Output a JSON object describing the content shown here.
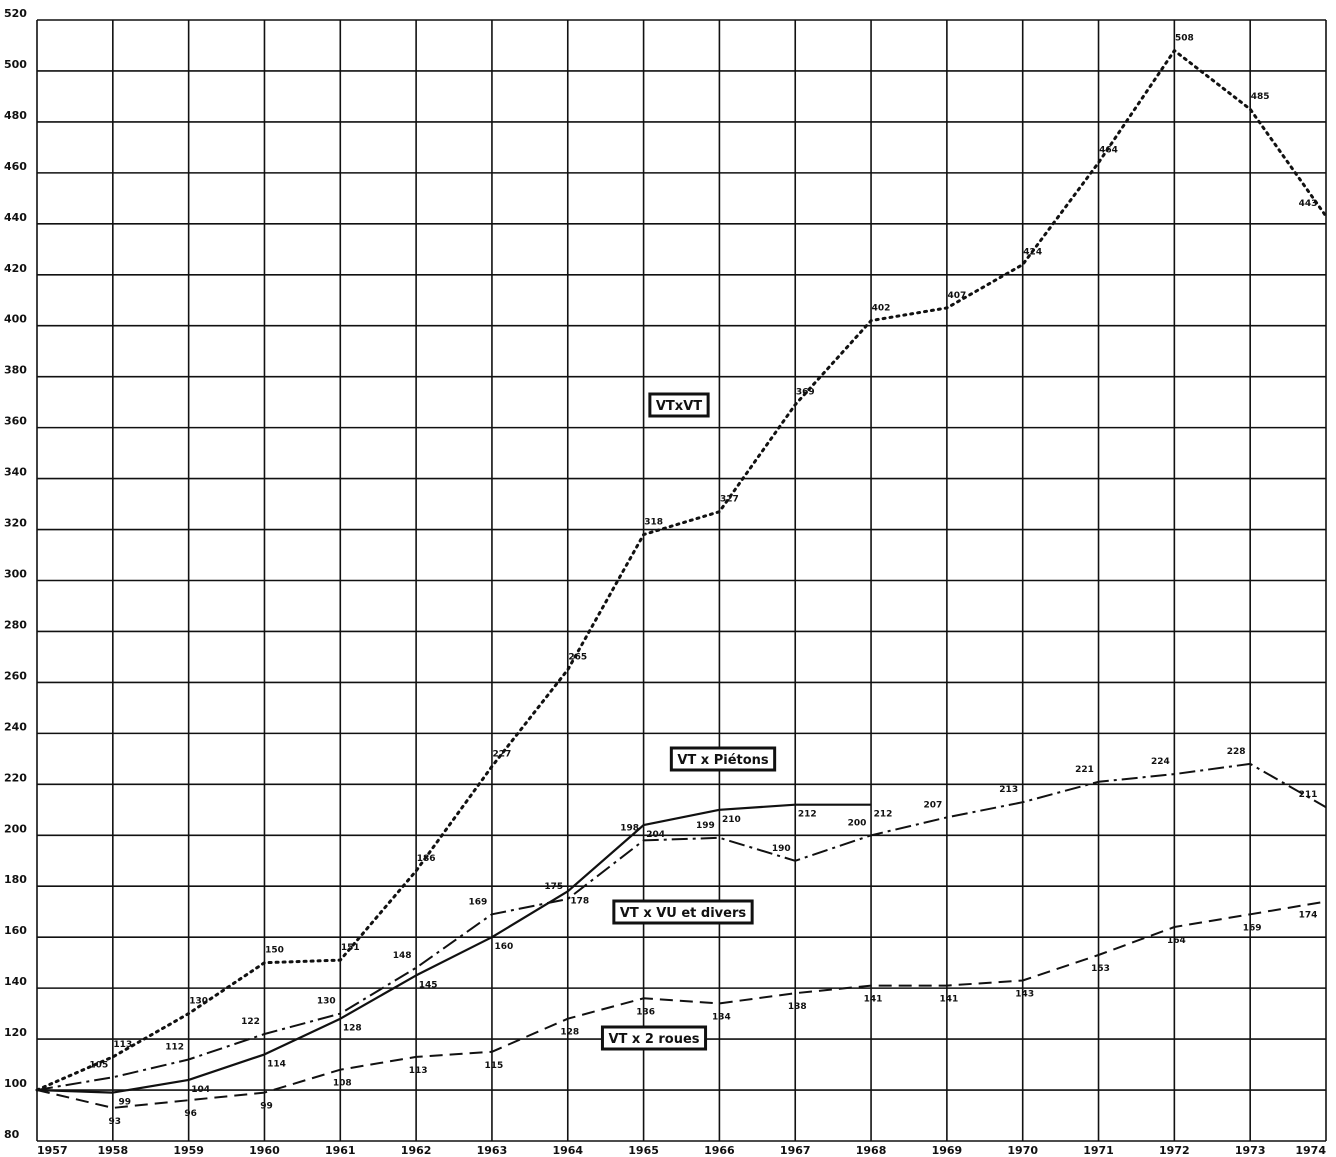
{
  "chart_data": {
    "type": "line",
    "x": [
      1957,
      1958,
      1959,
      1960,
      1961,
      1962,
      1963,
      1964,
      1965,
      1966,
      1967,
      1968,
      1969,
      1970,
      1971,
      1972,
      1973,
      1974
    ],
    "ylim": [
      80,
      520
    ],
    "yticks": [
      80,
      100,
      120,
      140,
      160,
      180,
      200,
      220,
      240,
      260,
      280,
      300,
      320,
      340,
      360,
      380,
      400,
      420,
      440,
      460,
      480,
      500,
      520
    ],
    "grid": true,
    "series": [
      {
        "name": "VTxVT",
        "style": "dotted",
        "values": [
          100,
          113,
          130,
          150,
          151,
          186,
          227,
          265,
          318,
          327,
          369,
          402,
          407,
          424,
          464,
          508,
          485,
          443
        ]
      },
      {
        "name": "VT x Piétons",
        "style": "dash-dot",
        "values": [
          100,
          105,
          112,
          122,
          130,
          148,
          169,
          175,
          198,
          199,
          190,
          200,
          207,
          213,
          221,
          224,
          228,
          211
        ]
      },
      {
        "name": "VT x VU et divers",
        "style": "solid",
        "values": [
          100,
          99,
          104,
          114,
          128,
          145,
          160,
          178,
          204,
          210,
          212,
          212,
          null,
          null,
          null,
          null,
          null,
          null
        ]
      },
      {
        "name": "VT x 2 roues",
        "style": "dashed",
        "values": [
          100,
          93,
          96,
          99,
          108,
          113,
          115,
          128,
          136,
          134,
          138,
          141,
          141,
          143,
          153,
          164,
          169,
          174
        ]
      }
    ]
  }
}
